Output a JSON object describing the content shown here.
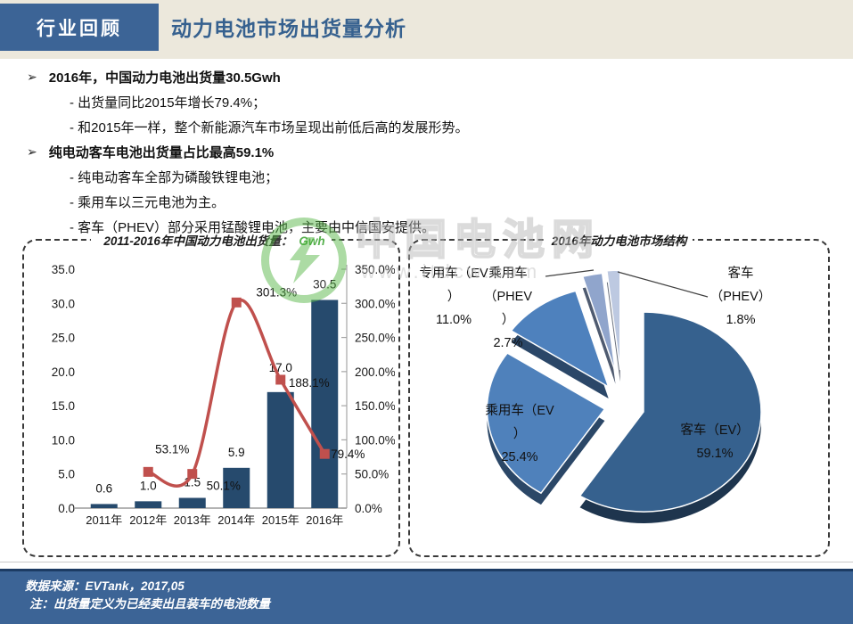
{
  "header": {
    "tab_label": "行业回顾",
    "title": "动力电池市场出货量分析"
  },
  "glyphs": {
    "bullet": "➢"
  },
  "bullets": [
    {
      "heading": "2016年，中国动力电池出货量30.5Gwh",
      "items": [
        "- 出货量同比2015年增长79.4%；",
        "- 和2015年一样，整个新能源汽车市场呈现出前低后高的发展形势。"
      ]
    },
    {
      "heading": "纯电动客车电池出货量占比最高59.1%",
      "items": [
        "- 纯电动客车全部为磷酸铁锂电池；",
        "- 乘用车以三元电池为主。",
        "- 客车（PHEV）部分采用锰酸锂电池，主要由中信国安提供。"
      ]
    }
  ],
  "watermark": {
    "brand": "中国电池网",
    "url": "www.itdcw.com",
    "logo_color": "#5CB94C"
  },
  "colors": {
    "header_blue": "#3C6496",
    "header_beige": "#ECE8DC",
    "title_blue": "#36618F",
    "bar_navy": "#264A6D",
    "line_red": "#C0504D",
    "footer_blue": "#3C6496"
  },
  "chart_data": [
    {
      "type": "bar",
      "title": "2011-2016年中国动力电池出货量：",
      "title_unit": "Gwh",
      "categories": [
        "2011年",
        "2012年",
        "2013年",
        "2014年",
        "2015年",
        "2016年"
      ],
      "series": [
        {
          "name": "出货量(Gwh)",
          "kind": "bar",
          "axis": "left",
          "color": "#264A6D",
          "values": [
            0.6,
            1.0,
            1.5,
            5.9,
            17.0,
            30.5
          ],
          "labels": [
            "0.6",
            "1.0",
            "1.5",
            "5.9",
            "17.0",
            "30.5"
          ]
        },
        {
          "name": "同比增长率",
          "kind": "line",
          "axis": "right",
          "color": "#C0504D",
          "values": [
            null,
            53.1,
            50.1,
            301.3,
            188.1,
            79.4
          ],
          "labels": [
            "",
            "53.1%",
            "50.1%",
            "301.3%",
            "188.1%",
            "79.4%"
          ]
        }
      ],
      "left_axis": {
        "min": 0,
        "max": 35,
        "step": 5,
        "ticks": [
          "35.0",
          "30.0",
          "25.0",
          "20.0",
          "15.0",
          "10.0",
          "5.0",
          "0.0"
        ]
      },
      "right_axis": {
        "min": 0,
        "max": 350,
        "step": 50,
        "ticks": [
          "350.0%",
          "300.0%",
          "250.0%",
          "200.0%",
          "150.0%",
          "100.0%",
          "50.0%",
          "0.0%"
        ]
      },
      "grid": false,
      "legend": "none"
    },
    {
      "type": "pie",
      "title": "2016年动力电池市场结构",
      "style": "3d-exploded",
      "slices": [
        {
          "name": "客车（EV）",
          "value": 59.1,
          "color": "#36618E",
          "label_lines": [
            "客车（EV）",
            "59.1%"
          ]
        },
        {
          "name": "乘用车（EV）",
          "value": 25.4,
          "color": "#4F81BB",
          "label_lines": [
            "乘用车（EV",
            "）",
            "25.4%"
          ]
        },
        {
          "name": "专用车（EV）",
          "value": 11.0,
          "color": "#4E81BD",
          "label_lines": [
            "专用车（EV",
            "）",
            "11.0%"
          ]
        },
        {
          "name": "乘用车（PHEV）",
          "value": 2.7,
          "color": "#90A5CC",
          "label_lines": [
            "乘用车",
            "（PHEV",
            "）",
            "2.7%"
          ]
        },
        {
          "name": "客车（PHEV）",
          "value": 1.8,
          "color": "#BDC9E1",
          "label_lines": [
            "客车",
            "（PHEV）",
            "1.8%"
          ]
        }
      ]
    }
  ],
  "footer": {
    "source": "数据来源：EVTank，2017,05",
    "note": "注：出货量定义为已经卖出且装车的电池数量"
  }
}
